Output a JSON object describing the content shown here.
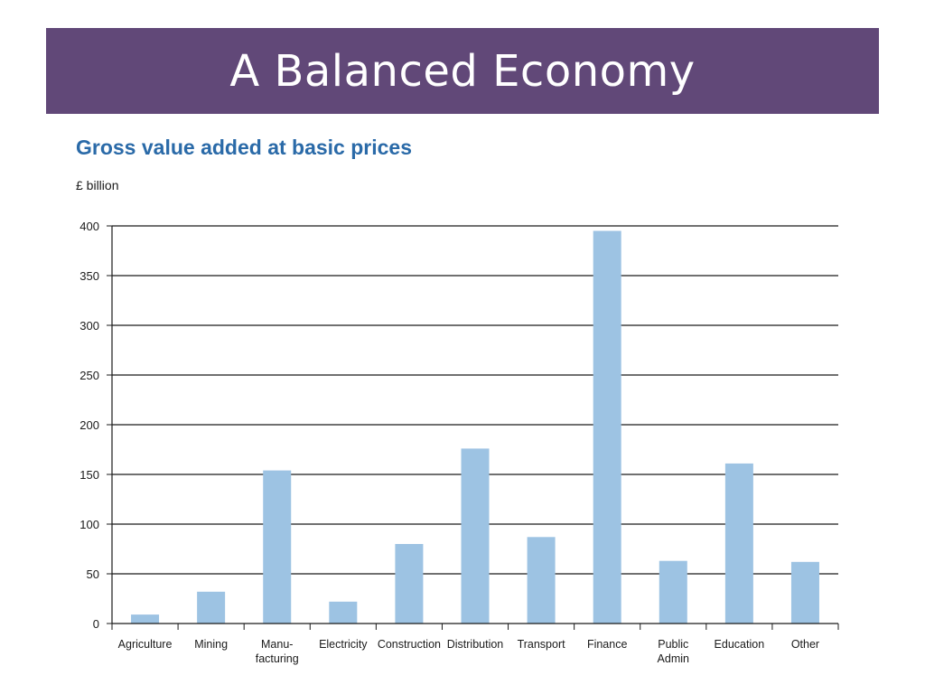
{
  "slide": {
    "title": "A Balanced Economy"
  },
  "chart_data": {
    "type": "bar",
    "title": "Gross value added at basic prices",
    "ylabel": "£ billion",
    "xlabel": "",
    "categories": [
      [
        "Agriculture"
      ],
      [
        "Mining"
      ],
      [
        "Manu-",
        "facturing"
      ],
      [
        "Electricity"
      ],
      [
        "Construction"
      ],
      [
        "Distribution"
      ],
      [
        "Transport"
      ],
      [
        "Finance"
      ],
      [
        "Public",
        "Admin"
      ],
      [
        "Education"
      ],
      [
        "Other"
      ]
    ],
    "values": [
      9,
      32,
      154,
      22,
      80,
      176,
      87,
      395,
      63,
      161,
      62
    ],
    "ylim": [
      0,
      400
    ],
    "yticks": [
      0,
      50,
      100,
      150,
      200,
      250,
      300,
      350,
      400
    ],
    "grid": true,
    "bar_color": "#9dc3e3",
    "colors": {
      "title_bar": "#614878",
      "chart_title": "#2a6aa8"
    }
  }
}
